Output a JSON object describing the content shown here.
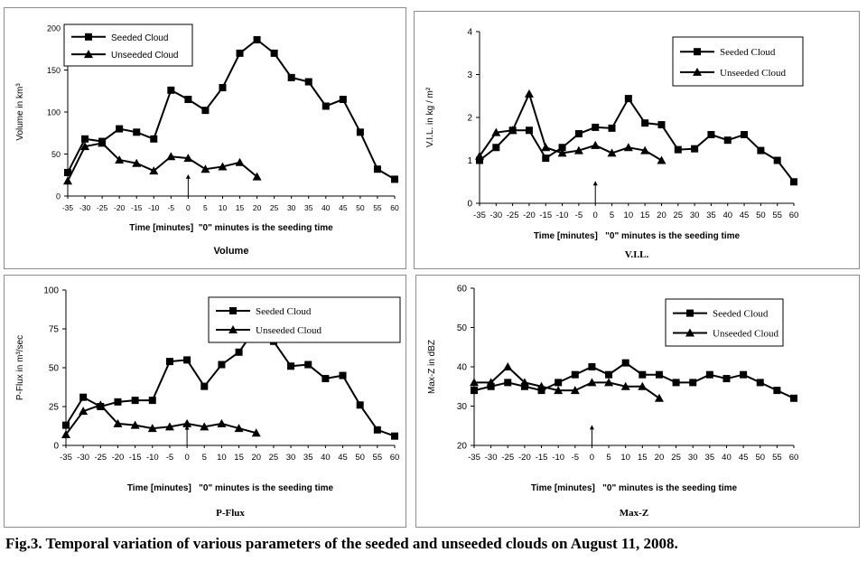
{
  "figure": {
    "caption": "Fig.3. Temporal variation of various parameters of the seeded and unseeded clouds on August 11, 2008."
  },
  "chart_data": [
    {
      "type": "line",
      "panel_label": "Volume",
      "xlabel": "Time [minutes]  \"0\" minutes is the seeding time",
      "ylabel": "Volume in km³",
      "ylim": [
        0,
        200
      ],
      "yticks": [
        0,
        50,
        100,
        150,
        200
      ],
      "xticks": [
        -35,
        -30,
        -25,
        -20,
        -15,
        -10,
        -5,
        0,
        5,
        10,
        15,
        20,
        25,
        30,
        35,
        40,
        45,
        50,
        55,
        60
      ],
      "legend_position": "top-left",
      "seeding_arrow_x": 0,
      "series": [
        {
          "name": "Seeded Cloud",
          "marker": "square",
          "x": [
            -35,
            -30,
            -25,
            -20,
            -15,
            -10,
            -5,
            0,
            5,
            10,
            15,
            20,
            25,
            30,
            35,
            40,
            45,
            50,
            55,
            60
          ],
          "y": [
            28,
            68,
            65,
            80,
            76,
            68,
            126,
            115,
            102,
            129,
            170,
            186,
            170,
            141,
            136,
            107,
            115,
            76,
            32,
            20
          ]
        },
        {
          "name": "Unseeded Cloud",
          "marker": "triangle",
          "x": [
            -35,
            -30,
            -25,
            -20,
            -15,
            -10,
            -5,
            0,
            5,
            10,
            15,
            20
          ],
          "y": [
            18,
            59,
            63,
            43,
            39,
            30,
            47,
            45,
            32,
            35,
            40,
            23
          ]
        }
      ]
    },
    {
      "type": "line",
      "panel_label": "V.I.L.",
      "xlabel": "Time [minutes]   \"0\" minutes is the seeding time",
      "ylabel": "V.I.L. in kg / m²",
      "ylim": [
        0,
        4
      ],
      "yticks": [
        0,
        1,
        2,
        3,
        4
      ],
      "xticks": [
        -35,
        -30,
        -25,
        -20,
        -15,
        -10,
        -5,
        0,
        5,
        10,
        15,
        20,
        25,
        30,
        35,
        40,
        45,
        50,
        55,
        60
      ],
      "legend_position": "top-right",
      "seeding_arrow_x": 0,
      "series": [
        {
          "name": "Seeded Cloud",
          "marker": "square",
          "x": [
            -35,
            -30,
            -25,
            -20,
            -15,
            -10,
            -5,
            0,
            5,
            10,
            15,
            20,
            25,
            30,
            35,
            40,
            45,
            50,
            55,
            60
          ],
          "y": [
            1.0,
            1.3,
            1.7,
            1.7,
            1.05,
            1.3,
            1.62,
            1.77,
            1.75,
            2.44,
            1.87,
            1.83,
            1.25,
            1.27,
            1.6,
            1.47,
            1.6,
            1.23,
            1.0,
            0.5
          ]
        },
        {
          "name": "Unseeded Cloud",
          "marker": "triangle",
          "x": [
            -35,
            -30,
            -25,
            -20,
            -15,
            -10,
            -5,
            0,
            5,
            10,
            15,
            20
          ],
          "y": [
            1.1,
            1.65,
            1.7,
            2.55,
            1.3,
            1.17,
            1.23,
            1.35,
            1.17,
            1.3,
            1.23,
            1.0
          ]
        }
      ]
    },
    {
      "type": "line",
      "panel_label": "P-Flux",
      "xlabel": "Time [minutes]   \"0\" minutes is the seeding time",
      "ylabel": "P-Flux in m³/sec",
      "ylim": [
        0,
        100
      ],
      "yticks": [
        0,
        25,
        50,
        75,
        100
      ],
      "xticks": [
        -35,
        -30,
        -25,
        -20,
        -15,
        -10,
        -5,
        0,
        5,
        10,
        15,
        20,
        25,
        30,
        35,
        40,
        45,
        50,
        55,
        60
      ],
      "legend_position": "top-right",
      "seeding_arrow_x": 0,
      "series": [
        {
          "name": "Seeded Cloud",
          "marker": "square",
          "x": [
            -35,
            -30,
            -25,
            -20,
            -15,
            -10,
            -5,
            0,
            5,
            10,
            15,
            20,
            25,
            30,
            35,
            40,
            45,
            50,
            55,
            60
          ],
          "y": [
            13,
            31,
            25,
            28,
            29,
            29,
            54,
            55,
            38,
            52,
            60,
            76,
            67,
            51,
            52,
            43,
            45,
            26,
            10,
            6
          ]
        },
        {
          "name": "Unseeded Cloud",
          "marker": "triangle",
          "x": [
            -35,
            -30,
            -25,
            -20,
            -15,
            -10,
            -5,
            0,
            5,
            10,
            15,
            20
          ],
          "y": [
            7,
            22,
            26,
            14,
            13,
            11,
            12,
            14,
            12,
            14,
            11,
            8
          ]
        }
      ]
    },
    {
      "type": "line",
      "panel_label": "Max-Z",
      "xlabel": "Time [minutes]   \"0\" minutes is the seeding time",
      "ylabel": "Max-Z in dBZ",
      "ylim": [
        20,
        60
      ],
      "yticks": [
        20,
        30,
        40,
        50,
        60
      ],
      "xticks": [
        -35,
        -30,
        -25,
        -20,
        -15,
        -10,
        -5,
        0,
        5,
        10,
        15,
        20,
        25,
        30,
        35,
        40,
        45,
        50,
        55,
        60
      ],
      "legend_position": "top-right",
      "seeding_arrow_x": 0,
      "series": [
        {
          "name": "Seeded Cloud",
          "marker": "square",
          "x": [
            -35,
            -30,
            -25,
            -20,
            -15,
            -10,
            -5,
            0,
            5,
            10,
            15,
            20,
            25,
            30,
            35,
            40,
            45,
            50,
            55,
            60
          ],
          "y": [
            34,
            35,
            36,
            35,
            34,
            36,
            38,
            40,
            38,
            41,
            38,
            38,
            36,
            36,
            38,
            37,
            38,
            36,
            34,
            32
          ]
        },
        {
          "name": "Unseeded Cloud",
          "marker": "triangle",
          "x": [
            -35,
            -30,
            -25,
            -20,
            -15,
            -10,
            -5,
            0,
            5,
            10,
            15,
            20
          ],
          "y": [
            36,
            36,
            40,
            36,
            35,
            34,
            34,
            36,
            36,
            35,
            35,
            32
          ]
        }
      ]
    }
  ]
}
